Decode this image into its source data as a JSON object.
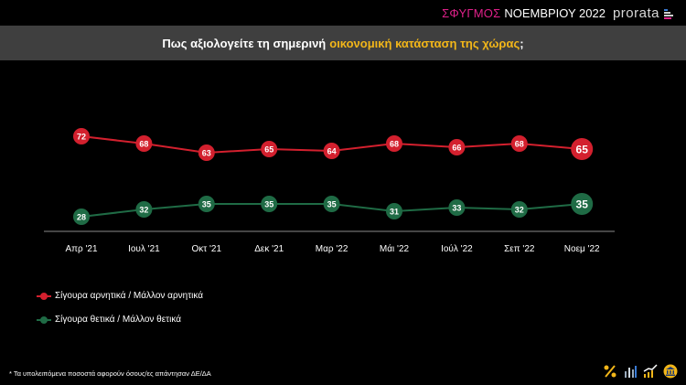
{
  "brand": {
    "pulse": "ΣΦΥΓΜΟΣ",
    "month": "ΝΟΕΜΒΡΙΟΥ 2022",
    "logo": "prorata"
  },
  "title": {
    "part1": "Πως αξιολογείτε τη σημερινή",
    "highlight": "οικονομική  κατάσταση της χώρας",
    "end": ";"
  },
  "chart_data": {
    "type": "line",
    "title": "Πως αξιολογείτε τη σημερινή οικονομική κατάσταση της χώρας;",
    "categories": [
      "Απρ '21",
      "Ιουλ '21",
      "Οκτ '21",
      "Δεκ '21",
      "Μαρ '22",
      "Μάι '22",
      "Ιούλ '22",
      "Σεπ '22",
      "Νοεμ '22"
    ],
    "series": [
      {
        "name": "Σίγουρα αρνητικά / Μάλλον αρνητικά",
        "color": "#d3202e",
        "values": [
          72,
          68,
          63,
          65,
          64,
          68,
          66,
          68,
          65
        ]
      },
      {
        "name": "Σίγουρα θετικά / Μάλλον θετικά",
        "color": "#1f6b45",
        "values": [
          28,
          32,
          35,
          35,
          35,
          31,
          33,
          32,
          35
        ]
      }
    ],
    "xlabel": "",
    "ylabel": "",
    "grid": false,
    "legend_position": "bottom-left"
  },
  "footnote": "* Τα υπολειπόμενα ποσοστά αφορούν όσους/ες απάντησαν ΔΕ/ΔΑ",
  "icons": [
    "percent-icon",
    "bar-chart-icon",
    "growth-chart-icon",
    "institution-icon"
  ]
}
